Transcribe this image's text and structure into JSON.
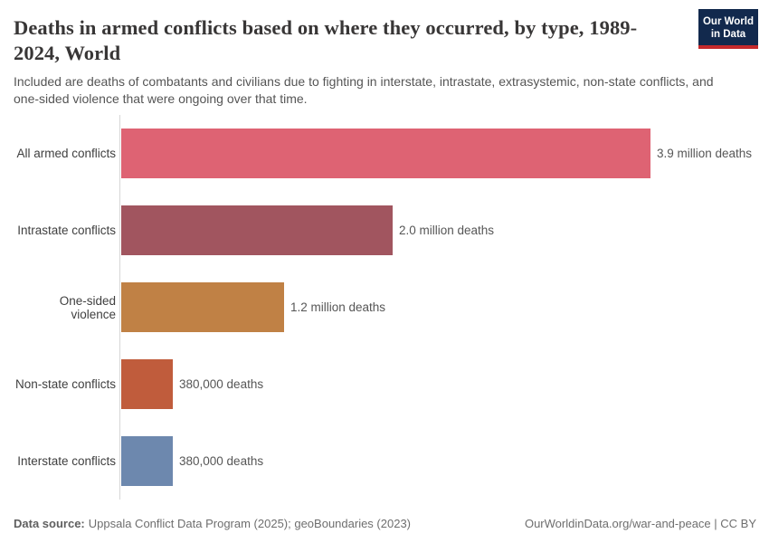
{
  "header": {
    "title": "Deaths in armed conflicts based on where they occurred, by type, 1989-2024, World",
    "subtitle": "Included are deaths of combatants and civilians due to fighting in interstate, intrastate, extrasystemic, non-state conflicts, and one-sided violence that were ongoing over that time."
  },
  "logo": {
    "line1": "Our World",
    "line2": "in Data"
  },
  "chart_data": {
    "type": "bar",
    "orientation": "horizontal",
    "title": "Deaths in armed conflicts based on where they occurred, by type, 1989-2024, World",
    "categories": [
      "All armed conflicts",
      "Intrastate conflicts",
      "One-sided violence",
      "Non-state conflicts",
      "Interstate conflicts"
    ],
    "values": [
      3900000,
      2000000,
      1200000,
      380000,
      380000
    ],
    "value_labels": [
      "3.9 million deaths",
      "2.0 million deaths",
      "1.2 million deaths",
      "380,000 deaths",
      "380,000 deaths"
    ],
    "colors": [
      "#de6373",
      "#a1555f",
      "#c08145",
      "#c05c3c",
      "#6d88ae"
    ],
    "xlabel": "",
    "ylabel": "",
    "xlim": [
      0,
      3900000
    ],
    "grid": false,
    "legend": false
  },
  "footer": {
    "datasource_label": "Data source:",
    "datasource_text": "Uppsala Conflict Data Program (2025); geoBoundaries (2023)",
    "attribution": "OurWorldinData.org/war-and-peace | CC BY"
  },
  "colors": {
    "logo_navy": "#12294d",
    "logo_red": "#c5292b",
    "axis": "#d6d6d6",
    "title_text": "#383636",
    "subtitle_text": "#555555"
  }
}
